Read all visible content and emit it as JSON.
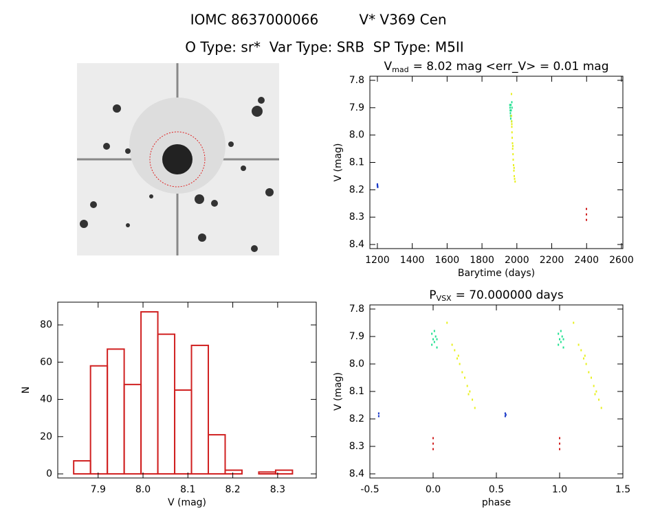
{
  "header": {
    "title": "IOMC 8637000066",
    "object": "V* V369 Cen",
    "subtitle": "O Type: sr*  Var Type: SRB  SP Type: M5II"
  },
  "chart_data": [
    {
      "type": "scatter",
      "title": "V",
      "title_subscript": "mad",
      "title_end": "= 8.02 mag <err_V> = 0.01 mag",
      "x_label": "Barytime (days)",
      "y_label": "V (mag)",
      "xlim": [
        1157,
        2608
      ],
      "ylim": [
        8.415,
        7.785
      ],
      "xticks": [
        1200,
        1400,
        1600,
        1800,
        2000,
        2200,
        2400,
        2600
      ],
      "yticks": [
        7.8,
        7.9,
        {
          "value": 8,
          "label": "8.0"
        },
        8.1,
        8.2,
        8.3,
        8.4
      ],
      "series": [
        {
          "color": "#1838c8",
          "x": [
            1200,
            1201,
            1202,
            1200,
            1201
          ],
          "values": [
            8.18,
            8.185,
            8.19,
            8.183,
            8.188
          ]
        },
        {
          "color": "#20e090",
          "x": [
            1960,
            1961,
            1962,
            1963,
            1964,
            1965,
            1966,
            1967,
            1968,
            1970,
            1971,
            1972
          ],
          "values": [
            7.89,
            7.9,
            7.91,
            7.92,
            7.93,
            7.94,
            7.89,
            7.91,
            7.93,
            7.95,
            7.88,
            7.9
          ]
        },
        {
          "color": "#e8f020",
          "x": [
            1969,
            1968,
            1970,
            1971,
            1972,
            1973,
            1975,
            1976,
            1978,
            1979,
            1981,
            1983,
            1985,
            1987,
            1990,
            1971,
            1977,
            1984
          ],
          "values": [
            7.85,
            7.93,
            7.95,
            7.97,
            7.99,
            8.01,
            8.03,
            8.05,
            8.07,
            8.09,
            8.11,
            8.13,
            8.15,
            8.16,
            8.17,
            7.96,
            8.04,
            8.12
          ]
        },
        {
          "color": "#d02020",
          "x": [
            2399,
            2399,
            2399
          ],
          "values": [
            8.27,
            8.29,
            8.31
          ]
        }
      ]
    },
    {
      "type": "histogram",
      "x_label": "V (mag)",
      "y_label": "N",
      "color": "#d02020",
      "bins": [
        7.8455,
        7.883,
        7.9205,
        7.958,
        7.9955,
        8.033,
        8.0705,
        8.108,
        8.1455,
        8.183,
        8.2205,
        8.258,
        8.2955,
        8.333
      ],
      "values": [
        7,
        58,
        67,
        48,
        87,
        75,
        45,
        69,
        21,
        2,
        0,
        1,
        2
      ],
      "xlim": [
        7.81,
        8.386
      ],
      "ylim": [
        -2.2,
        92.2
      ],
      "xticks": [
        7.9,
        {
          "value": 8,
          "label": "8.0"
        },
        8.1,
        8.2,
        8.3
      ],
      "yticks": [
        0,
        20,
        40,
        60,
        80
      ]
    },
    {
      "type": "scatter",
      "title": "P",
      "title_subscript": "VSX",
      "title_end": "= 70.000000 days",
      "x_label": "phase",
      "y_label": "V (mag)",
      "xlim": [
        -0.5,
        1.5
      ],
      "ylim": [
        8.415,
        7.785
      ],
      "xticks": [
        -0.5,
        {
          "value": 0,
          "label": "0.0"
        },
        0.5,
        {
          "value": 1,
          "label": "1.0"
        },
        1.5
      ],
      "yticks": [
        7.8,
        7.9,
        {
          "value": 8,
          "label": "8.0"
        },
        8.1,
        8.2,
        8.3,
        8.4
      ],
      "series": [
        {
          "color": "#1838c8",
          "x": [
            -0.43,
            -0.43,
            0.57,
            0.57,
            0.575
          ],
          "values": [
            8.18,
            8.19,
            8.18,
            8.19,
            8.185
          ]
        },
        {
          "color": "#20e090",
          "x": [
            -0.01,
            0,
            0.01,
            0.02,
            0.03,
            -0.01,
            0.01,
            0.03,
            0.99,
            1,
            1.01,
            1.02,
            1.03,
            0.99,
            1.01,
            1.03
          ],
          "values": [
            7.89,
            7.91,
            7.92,
            7.9,
            7.94,
            7.93,
            7.88,
            7.91,
            7.89,
            7.91,
            7.92,
            7.9,
            7.94,
            7.93,
            7.88,
            7.91
          ]
        },
        {
          "color": "#e8f020",
          "x": [
            0.11,
            0.15,
            0.17,
            0.19,
            0.21,
            0.23,
            0.25,
            0.27,
            0.29,
            0.31,
            0.33,
            0.2,
            0.28,
            1.11,
            1.15,
            1.17,
            1.19,
            1.21,
            1.23,
            1.25,
            1.27,
            1.29,
            1.31,
            1.33,
            1.2,
            1.28
          ],
          "values": [
            7.85,
            7.93,
            7.95,
            7.98,
            8.0,
            8.03,
            8.05,
            8.08,
            8.1,
            8.13,
            8.16,
            7.97,
            8.11,
            7.85,
            7.93,
            7.95,
            7.98,
            8.0,
            8.03,
            8.05,
            8.08,
            8.1,
            8.13,
            8.16,
            7.97,
            8.11
          ]
        },
        {
          "color": "#d02020",
          "x": [
            0,
            0,
            0,
            1,
            1,
            1
          ],
          "values": [
            8.27,
            8.29,
            8.31,
            8.27,
            8.29,
            8.31
          ]
        }
      ]
    }
  ]
}
